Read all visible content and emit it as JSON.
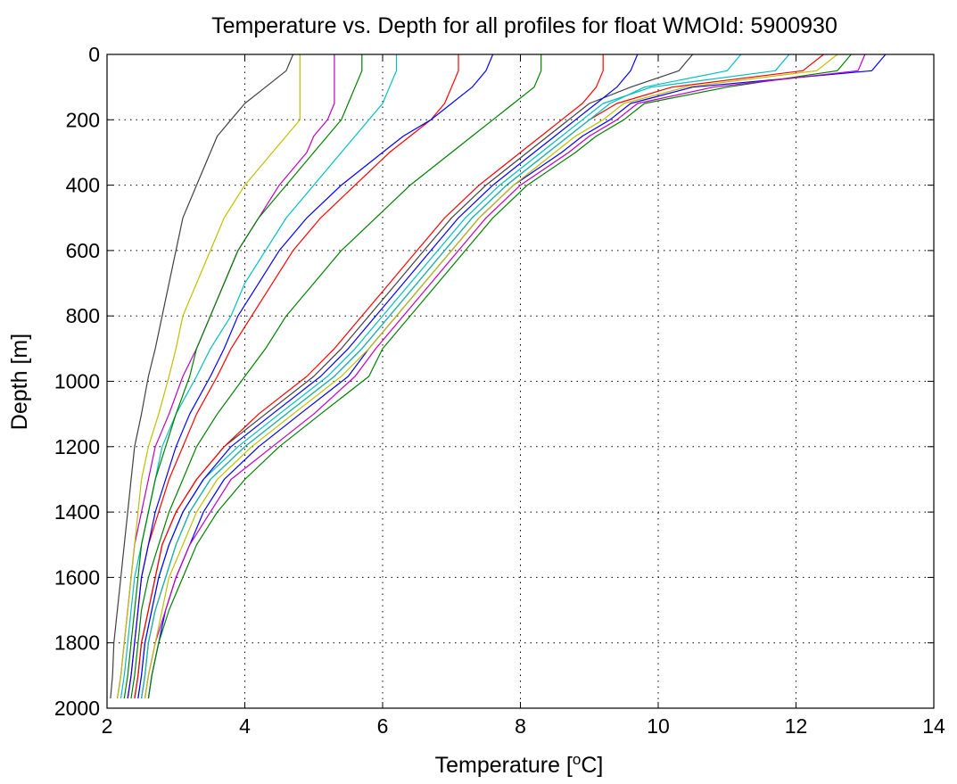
{
  "chart_data": {
    "type": "line",
    "title": "Temperature vs. Depth for all profiles for float WMOId: 5900930",
    "xlabel": "Temperature [",
    "xlabel_superscript": "o",
    "xlabel_end": "C]",
    "ylabel": "Depth [m]",
    "xlim": [
      2,
      14
    ],
    "ylim": [
      0,
      2000
    ],
    "y_reversed": true,
    "grid": true,
    "grid_style": "dotted",
    "xticks": [
      2,
      4,
      6,
      8,
      10,
      12,
      14
    ],
    "yticks": [
      0,
      200,
      400,
      600,
      800,
      1000,
      1200,
      1400,
      1600,
      1800,
      2000
    ],
    "colors": [
      "#0000ff",
      "#008000",
      "#ff0000",
      "#00bfbf",
      "#bf00bf",
      "#bfbf00",
      "#404040"
    ],
    "depths": [
      0,
      50,
      100,
      150,
      200,
      250,
      300,
      400,
      500,
      600,
      700,
      800,
      900,
      985,
      1100,
      1200,
      1300,
      1400,
      1500,
      1600,
      1700,
      1800,
      1900,
      1970
    ],
    "series": [
      {
        "temps": [
          13.3,
          13.1,
          10.5,
          9.6,
          9.3,
          8.9,
          8.6,
          7.9,
          7.4,
          7.0,
          6.6,
          6.2,
          5.8,
          5.5,
          4.8,
          4.2,
          3.7,
          3.4,
          3.2,
          3.0,
          2.85,
          2.75,
          2.65,
          2.6
        ]
      },
      {
        "temps": [
          12.8,
          12.6,
          11.0,
          9.8,
          9.5,
          9.1,
          8.8,
          8.1,
          7.6,
          7.2,
          6.8,
          6.4,
          6.0,
          5.8,
          5.1,
          4.5,
          4.0,
          3.6,
          3.3,
          3.1,
          2.9,
          2.75,
          2.65,
          2.6
        ]
      },
      {
        "temps": [
          12.4,
          12.1,
          10.2,
          9.4,
          9.0,
          8.7,
          8.4,
          7.8,
          7.3,
          6.9,
          6.5,
          6.1,
          5.7,
          5.3,
          4.6,
          4.0,
          3.5,
          3.2,
          3.0,
          2.85,
          2.7,
          2.6,
          2.55,
          2.5
        ]
      },
      {
        "temps": [
          11.9,
          11.7,
          9.9,
          9.2,
          8.9,
          8.6,
          8.3,
          7.7,
          7.2,
          6.8,
          6.4,
          6.0,
          5.6,
          5.2,
          4.5,
          3.9,
          3.4,
          3.1,
          2.9,
          2.75,
          2.65,
          2.55,
          2.5,
          2.45
        ]
      },
      {
        "temps": [
          13.0,
          12.9,
          10.8,
          9.7,
          9.4,
          9.0,
          8.7,
          8.0,
          7.5,
          7.1,
          6.7,
          6.3,
          5.9,
          5.6,
          5.0,
          4.4,
          3.8,
          3.5,
          3.2,
          3.0,
          2.85,
          2.7,
          2.6,
          2.55
        ]
      },
      {
        "temps": [
          12.6,
          12.3,
          10.4,
          9.5,
          9.2,
          8.8,
          8.5,
          7.9,
          7.4,
          7.0,
          6.6,
          6.2,
          5.8,
          5.4,
          4.7,
          4.1,
          3.6,
          3.3,
          3.1,
          2.9,
          2.8,
          2.7,
          2.6,
          2.55
        ]
      },
      {
        "temps": [
          10.5,
          10.3,
          9.6,
          9.0,
          8.7,
          8.4,
          8.1,
          7.5,
          7.0,
          6.6,
          6.2,
          5.8,
          5.4,
          5.0,
          4.3,
          3.7,
          3.3,
          3.0,
          2.8,
          2.7,
          2.6,
          2.5,
          2.45,
          2.4
        ]
      },
      {
        "temps": [
          9.7,
          9.6,
          9.4,
          9.1,
          8.8,
          8.5,
          8.2,
          7.6,
          7.1,
          6.7,
          6.3,
          5.9,
          5.5,
          5.1,
          4.4,
          3.8,
          3.4,
          3.1,
          2.9,
          2.75,
          2.65,
          2.55,
          2.5,
          2.45
        ]
      },
      {
        "temps": [
          8.3,
          8.3,
          8.2,
          7.9,
          7.6,
          7.3,
          7.0,
          6.4,
          5.9,
          5.4,
          5.0,
          4.6,
          4.3,
          4.0,
          3.6,
          3.3,
          3.1,
          2.9,
          2.75,
          2.6,
          2.5,
          2.45,
          2.4,
          2.35
        ]
      },
      {
        "temps": [
          7.1,
          7.1,
          7.0,
          6.9,
          6.7,
          6.4,
          6.1,
          5.6,
          5.1,
          4.7,
          4.4,
          4.1,
          3.8,
          3.6,
          3.3,
          3.1,
          2.9,
          2.75,
          2.6,
          2.5,
          2.45,
          2.4,
          2.35,
          2.3
        ]
      },
      {
        "temps": [
          6.2,
          6.2,
          6.1,
          6.0,
          5.8,
          5.6,
          5.4,
          5.0,
          4.6,
          4.3,
          4.0,
          3.8,
          3.5,
          3.3,
          3.0,
          2.8,
          2.7,
          2.6,
          2.5,
          2.4,
          2.35,
          2.3,
          2.25,
          2.2
        ]
      },
      {
        "temps": [
          5.3,
          5.3,
          5.3,
          5.3,
          5.2,
          5.0,
          4.9,
          4.5,
          4.2,
          3.9,
          3.7,
          3.5,
          3.3,
          3.1,
          2.9,
          2.7,
          2.6,
          2.5,
          2.4,
          2.35,
          2.3,
          2.25,
          2.2,
          2.15
        ]
      },
      {
        "temps": [
          4.8,
          4.8,
          4.8,
          4.8,
          4.8,
          4.6,
          4.4,
          4.0,
          3.7,
          3.5,
          3.3,
          3.1,
          3.0,
          2.9,
          2.75,
          2.6,
          2.5,
          2.45,
          2.4,
          2.35,
          2.3,
          2.25,
          2.2,
          2.15
        ]
      },
      {
        "temps": [
          4.7,
          4.6,
          4.3,
          4.0,
          3.8,
          3.6,
          3.5,
          3.3,
          3.1,
          3.0,
          2.9,
          2.8,
          2.7,
          2.6,
          2.5,
          2.4,
          2.35,
          2.3,
          2.25,
          2.2,
          2.15,
          2.1,
          2.08,
          2.05
        ]
      },
      {
        "temps": [
          7.6,
          7.5,
          7.3,
          7.0,
          6.7,
          6.3,
          6.0,
          5.4,
          4.9,
          4.5,
          4.2,
          3.9,
          3.7,
          3.5,
          3.2,
          3.0,
          2.85,
          2.7,
          2.6,
          2.5,
          2.45,
          2.4,
          2.35,
          2.3
        ]
      },
      {
        "temps": [
          5.7,
          5.7,
          5.6,
          5.5,
          5.4,
          5.2,
          5.0,
          4.6,
          4.2,
          3.9,
          3.7,
          3.5,
          3.3,
          3.2,
          3.0,
          2.85,
          2.7,
          2.6,
          2.5,
          2.45,
          2.4,
          2.35,
          2.3,
          2.25
        ]
      },
      {
        "temps": [
          9.2,
          9.2,
          9.1,
          8.9,
          8.6,
          8.3,
          8.0,
          7.4,
          6.9,
          6.5,
          6.1,
          5.7,
          5.3,
          4.9,
          4.2,
          3.7,
          3.3,
          3.0,
          2.8,
          2.7,
          2.6,
          2.5,
          2.45,
          2.4
        ]
      },
      {
        "temps": [
          11.2,
          11.0,
          9.8,
          9.3,
          9.0,
          8.7,
          8.4,
          7.8,
          7.3,
          6.9,
          6.5,
          6.1,
          5.7,
          5.3,
          4.6,
          4.0,
          3.5,
          3.2,
          3.0,
          2.85,
          2.7,
          2.6,
          2.55,
          2.5
        ]
      }
    ]
  }
}
